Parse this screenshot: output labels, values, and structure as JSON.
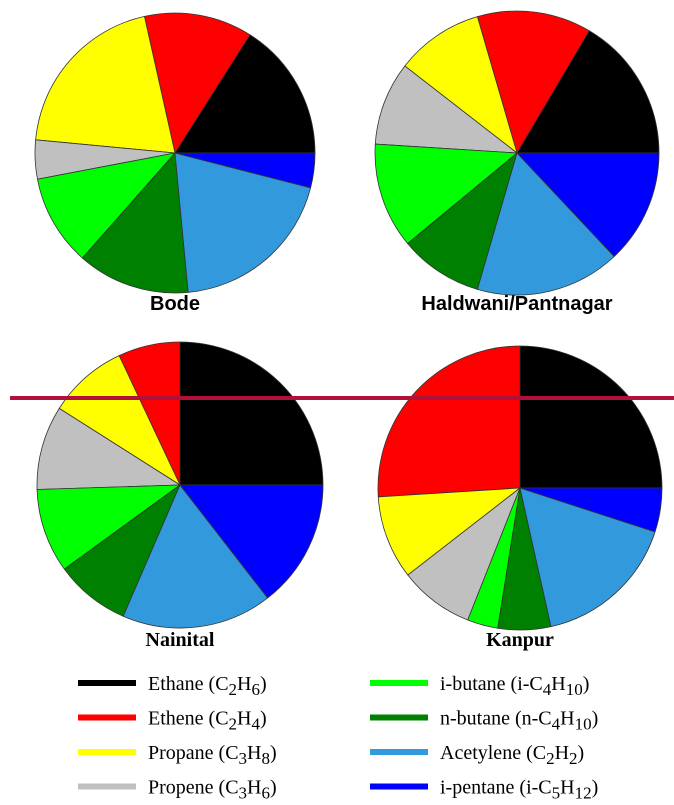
{
  "chart_data": [
    {
      "type": "pie",
      "title": "Bode",
      "values": [
        16,
        12.5,
        20,
        4.5,
        10.5,
        13,
        19.5,
        4
      ]
    },
    {
      "type": "pie",
      "title": "Haldwani/Pantnagar",
      "values": [
        16.5,
        13,
        10,
        9.5,
        12,
        9.5,
        16.5,
        13
      ]
    },
    {
      "type": "pie",
      "title": "Nainital",
      "values": [
        25,
        7,
        9,
        9.5,
        9.5,
        8.5,
        17,
        14.5
      ]
    },
    {
      "type": "pie",
      "title": "Kanpur",
      "values": [
        25,
        26,
        9.5,
        8.5,
        3.5,
        6,
        16.5,
        5
      ]
    }
  ],
  "legend": {
    "categories": [
      "Ethane (C2H6)",
      "Ethene (C2H4)",
      "Propane (C3H8)",
      "Propene (C3H6)",
      "i-butane (i-C4H10)",
      "n-butane (n-C4H10)",
      "Acetylene (C2H2)",
      "i-pentane (i-C5H12)"
    ],
    "colors": [
      "#000000",
      "#ff0000",
      "#ffff00",
      "#c0c0c0",
      "#00ff00",
      "#008000",
      "#3399dd",
      "#0000ff"
    ]
  }
}
